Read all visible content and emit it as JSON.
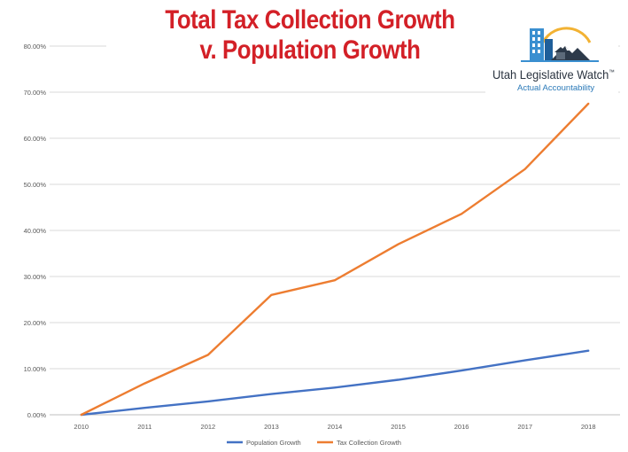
{
  "title": {
    "line1": "Total Tax Collection Growth",
    "line2": "v. Population Growth"
  },
  "logo": {
    "name": "Utah Legislative Watch",
    "trademark": "™",
    "tagline": "Actual Accountability",
    "icon": "building-skyline-mountain-icon"
  },
  "colors": {
    "title": "#d32027",
    "population": "#4472c4",
    "tax": "#ed7d31",
    "grid": "#d9d9d9",
    "axis": "#bfbfbf",
    "tick_text": "#595959"
  },
  "chart_data": {
    "type": "line",
    "title": "Total Tax Collection Growth v. Population Growth",
    "x": [
      "2010",
      "2011",
      "2012",
      "2013",
      "2014",
      "2015",
      "2016",
      "2017",
      "2018"
    ],
    "series": [
      {
        "name": "Population Growth",
        "values": [
          0.0,
          1.5,
          2.9,
          4.5,
          5.9,
          7.6,
          9.6,
          11.8,
          13.9
        ],
        "color": "#4472c4"
      },
      {
        "name": "Tax Collection Growth",
        "values": [
          0.0,
          6.8,
          13.0,
          26.0,
          29.2,
          37.0,
          43.6,
          53.3,
          67.5
        ],
        "color": "#ed7d31"
      }
    ],
    "ylim": [
      0,
      80
    ],
    "yticks": [
      "0.00%",
      "10.00%",
      "20.00%",
      "30.00%",
      "40.00%",
      "50.00%",
      "60.00%",
      "70.00%",
      "80.00%"
    ],
    "grid": true,
    "legend": "bottom-center",
    "xlabel": "",
    "ylabel": ""
  }
}
